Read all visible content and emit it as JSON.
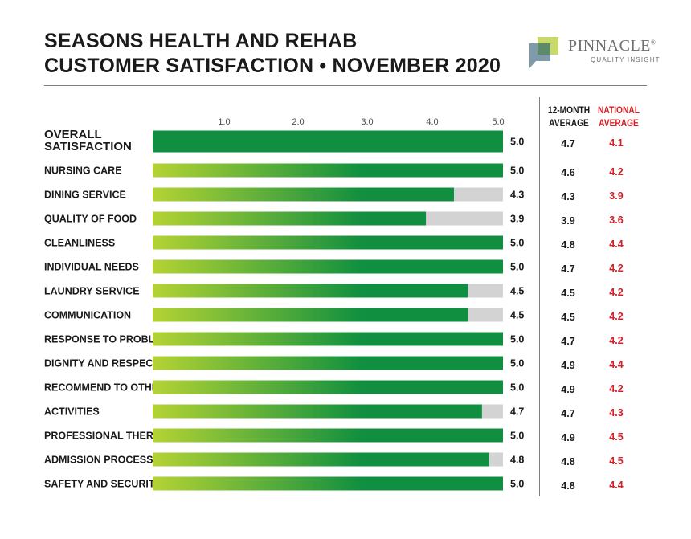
{
  "header": {
    "title_line1": "SEASONS HEALTH AND REHAB",
    "title_line2": "CUSTOMER SATISFACTION • NOVEMBER 2020"
  },
  "logo": {
    "name": "PINNACLE",
    "registered_mark": "®",
    "tagline": "QUALITY INSIGHT"
  },
  "columns": {
    "twelve_month_line1": "12-MONTH",
    "twelve_month_line2": "AVERAGE",
    "national_line1": "NATIONAL",
    "national_line2": "AVERAGE"
  },
  "colors": {
    "bar_start": "#b5d334",
    "bar_end": "#0f8f3f",
    "bar_track": "#d3d3d3",
    "national": "#d42027"
  },
  "chart_data": {
    "type": "bar",
    "orientation": "horizontal",
    "x_ticks": [
      "1.0",
      "2.0",
      "3.0",
      "4.0",
      "5.0"
    ],
    "xlim": [
      0,
      5
    ],
    "grid": false,
    "categories": [
      "OVERALL SATISFACTION",
      "NURSING CARE",
      "DINING SERVICE",
      "QUALITY OF FOOD",
      "CLEANLINESS",
      "INDIVIDUAL NEEDS",
      "LAUNDRY SERVICE",
      "COMMUNICATION",
      "RESPONSE TO PROBLEMS",
      "DIGNITY AND RESPECT",
      "RECOMMEND TO OTHERS",
      "ACTIVITIES",
      "PROFESSIONAL THERAPY",
      "ADMISSION PROCESS",
      "SAFETY AND SECURITY"
    ],
    "values": [
      5.0,
      5.0,
      4.3,
      3.9,
      5.0,
      5.0,
      4.5,
      4.5,
      5.0,
      5.0,
      5.0,
      4.7,
      5.0,
      4.8,
      5.0
    ],
    "value_labels": [
      "5.0",
      "5.0",
      "4.3",
      "3.9",
      "5.0",
      "5.0",
      "4.5",
      "4.5",
      "5.0",
      "5.0",
      "5.0",
      "4.7",
      "5.0",
      "4.8",
      "5.0"
    ],
    "twelve_month_average": [
      "4.7",
      "4.6",
      "4.3",
      "3.9",
      "4.8",
      "4.7",
      "4.5",
      "4.5",
      "4.7",
      "4.9",
      "4.9",
      "4.7",
      "4.9",
      "4.8",
      "4.8"
    ],
    "national_average": [
      "4.1",
      "4.2",
      "3.9",
      "3.6",
      "4.4",
      "4.2",
      "4.2",
      "4.2",
      "4.2",
      "4.4",
      "4.2",
      "4.3",
      "4.5",
      "4.5",
      "4.4"
    ]
  }
}
